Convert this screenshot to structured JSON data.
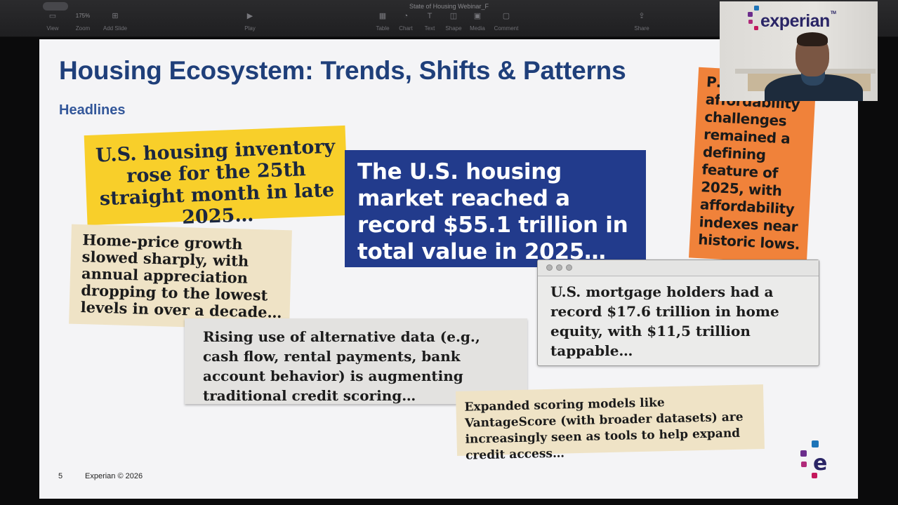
{
  "window": {
    "title": "State of Housing Webinar_F"
  },
  "toolbar": {
    "view": "View",
    "zoom_value": "175%",
    "zoom": "Zoom",
    "add_slide": "Add Slide",
    "play": "Play",
    "table": "Table",
    "chart": "Chart",
    "text": "Text",
    "shape": "Shape",
    "media": "Media",
    "comment": "Comment",
    "share": "Share"
  },
  "slide": {
    "title": "Housing Ecosystem: Trends, Shifts & Patterns",
    "subtitle": "Headlines",
    "clips": {
      "inventory": "U.S. housing inventory rose for the 25th straight month in late 2025…",
      "market_value": "The U.S. housing market reached a record $55.1 trillion in total value in 2025…",
      "price_growth": "Home-price growth slowed sharply, with annual appreciation dropping to the lowest levels in over a decade…",
      "alt_data": "Rising use of alternative data (e.g., cash flow, rental payments, bank account behavior) is augmenting traditional credit scoring…",
      "scoring_models": "Expanded scoring models like VantageScore (with broader datasets) are increasingly seen as tools to help expand credit access…",
      "affordability": "P… affordability challenges remained a defining feature of 2025, with affordability indexes near historic lows.",
      "equity": "U.S. mortgage holders had a record $17.6 trillion in home equity, with $11,5 trillion tappable…"
    },
    "footer": {
      "page": "5",
      "copyright": "Experian © 2026"
    }
  },
  "webcam": {
    "logo_text": "experian",
    "logo_tm": "TM"
  },
  "colors": {
    "title_blue": "#1f3f7a",
    "clip_yellow": "#f8cf2a",
    "clip_blue": "#223b8c",
    "clip_orange": "#f0823a",
    "clip_beige": "#efe3c6",
    "brand_purple": "#6b2d8c",
    "brand_magenta": "#c4185c"
  }
}
